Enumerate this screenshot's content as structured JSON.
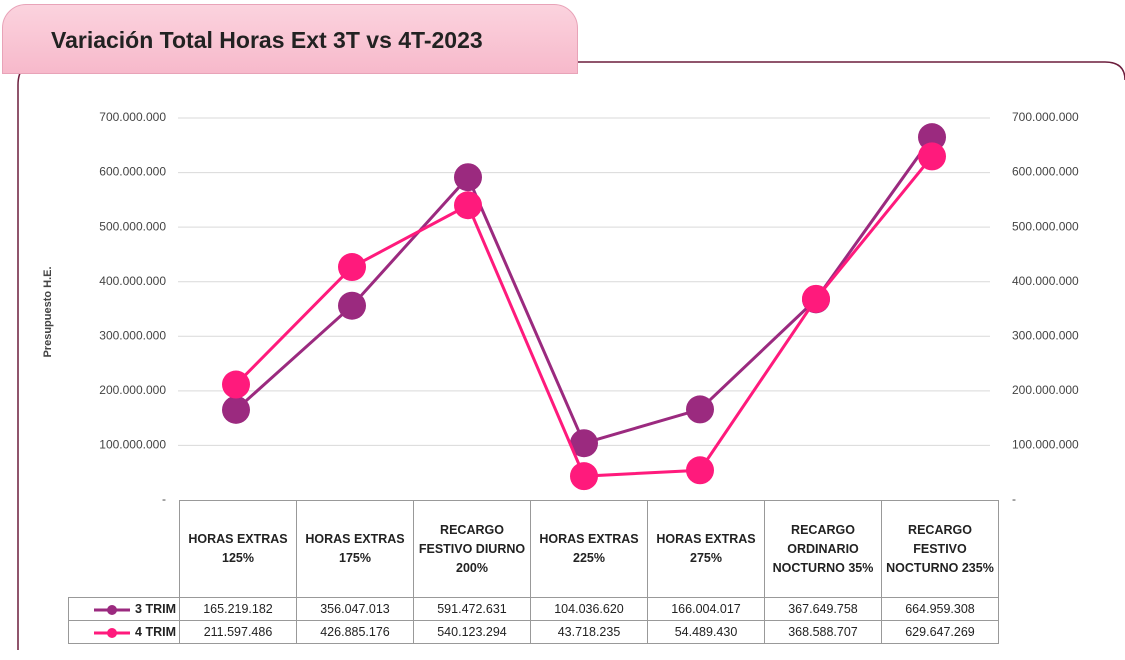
{
  "chart_data": {
    "type": "line",
    "title": "Variación Total Horas Ext 3T vs 4T-2023",
    "ylabel": "Presupuesto H.E.",
    "categories": [
      "HORAS EXTRAS 125%",
      "HORAS EXTRAS 175%",
      "RECARGO FESTIVO DIURNO 200%",
      "HORAS EXTRAS 225%",
      "HORAS EXTRAS 275%",
      "RECARGO ORDINARIO NOCTURNO 35%",
      "RECARGO FESTIVO NOCTURNO 235%"
    ],
    "series": [
      {
        "name": "3 TRIM",
        "color": "#9b2a7f",
        "values": [
          165219182,
          356047013,
          591472631,
          104036620,
          166004017,
          367649758,
          664959308
        ],
        "value_labels": [
          "165.219.182",
          "356.047.013",
          "591.472.631",
          "104.036.620",
          "166.004.017",
          "367.649.758",
          "664.959.308"
        ]
      },
      {
        "name": "4 TRIM",
        "color": "#ff1a7c",
        "values": [
          211597486,
          426885176,
          540123294,
          43718235,
          54489430,
          368588707,
          629647269
        ],
        "value_labels": [
          "211.597.486",
          "426.885.176",
          "540.123.294",
          "43.718.235",
          "54.489.430",
          "368.588.707",
          "629.647.269"
        ]
      }
    ],
    "ylim": [
      0,
      700000000
    ],
    "yticks": [
      {
        "value": 0,
        "label": "-"
      },
      {
        "value": 100000000,
        "label": "100.000.000"
      },
      {
        "value": 200000000,
        "label": "200.000.000"
      },
      {
        "value": 300000000,
        "label": "300.000.000"
      },
      {
        "value": 400000000,
        "label": "400.000.000"
      },
      {
        "value": 500000000,
        "label": "500.000.000"
      },
      {
        "value": 600000000,
        "label": "600.000.000"
      },
      {
        "value": 700000000,
        "label": "700.000.000"
      }
    ],
    "y2lim": [
      0,
      700000000
    ],
    "y2ticks": [
      {
        "value": 0,
        "label": "-"
      },
      {
        "value": 100000000,
        "label": "100.000.000"
      },
      {
        "value": 200000000,
        "label": "200.000.000"
      },
      {
        "value": 300000000,
        "label": "300.000.000"
      },
      {
        "value": 400000000,
        "label": "400.000.000"
      },
      {
        "value": 500000000,
        "label": "500.000.000"
      },
      {
        "value": 600000000,
        "label": "600.000.000"
      },
      {
        "value": 700000000,
        "label": "700.000.000"
      }
    ],
    "grid": true
  }
}
